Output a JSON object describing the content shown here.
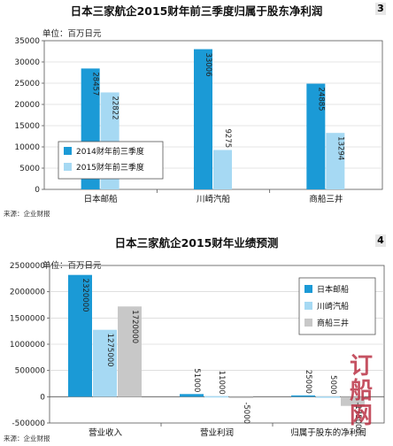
{
  "chart_data": [
    {
      "type": "bar",
      "title": "日本三家航企2015财年前三季度归属于股东净利润",
      "badge": "3",
      "unit": "单位：百万日元",
      "source": "来源：企业财报",
      "categories": [
        "日本邮船",
        "川崎汽船",
        "商船三井"
      ],
      "series": [
        {
          "name": "2014财年前三季度",
          "color": "#1b9ad6",
          "values": [
            28457,
            33006,
            24885
          ]
        },
        {
          "name": "2015财年前三季度",
          "color": "#a6d9f3",
          "values": [
            22822,
            9275,
            13294
          ]
        }
      ],
      "ylim": [
        0,
        35000
      ],
      "yticks": [
        0,
        5000,
        10000,
        15000,
        20000,
        25000,
        30000,
        35000
      ],
      "legend_position": "bottom-left",
      "grid": true
    },
    {
      "type": "bar",
      "title": "日本三家航企2015财年业绩预测",
      "badge": "4",
      "unit": "单位：百万日元",
      "source": "来源：企业财报",
      "categories": [
        "营业收入",
        "营业利润",
        "归属于股东的净利润"
      ],
      "series": [
        {
          "name": "日本邮船",
          "color": "#1b9ad6",
          "values": [
            2320000,
            51000,
            25000
          ]
        },
        {
          "name": "川崎汽船",
          "color": "#a6d9f3",
          "values": [
            1275000,
            11000,
            5000
          ]
        },
        {
          "name": "商船三井",
          "color": "#c8c8c8",
          "values": [
            1720000,
            -5000,
            -175000
          ]
        }
      ],
      "ylim": [
        -500000,
        2500000
      ],
      "yticks": [
        -500000,
        0,
        500000,
        1000000,
        1500000,
        2000000,
        2500000
      ],
      "legend_position": "top-right",
      "grid": true
    }
  ],
  "watermark": "订船网"
}
